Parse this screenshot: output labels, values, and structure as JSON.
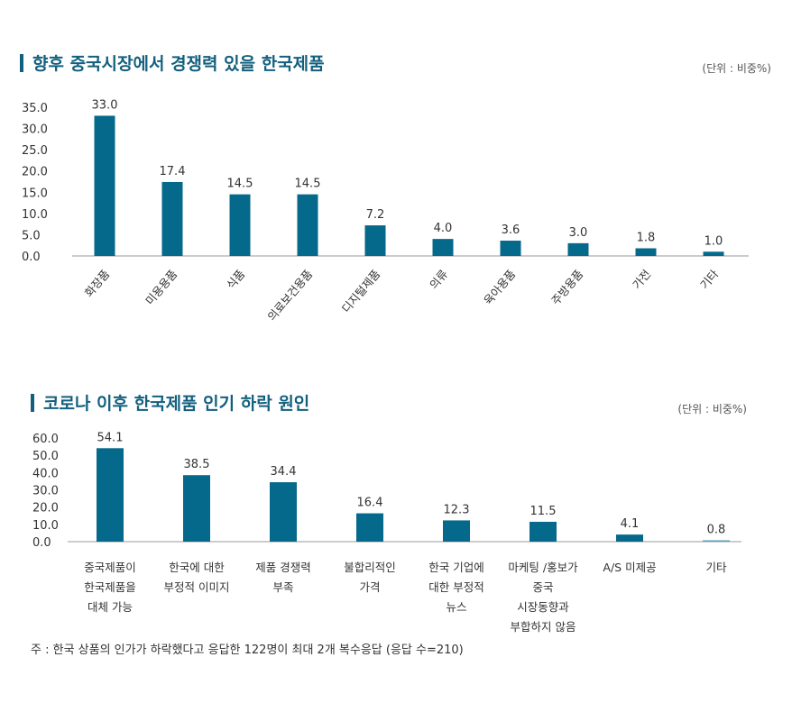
{
  "colors": {
    "bar": "#04698a",
    "bar_light": "#5aa3be",
    "title": "#13607e",
    "axis": "#cccccc"
  },
  "chart_data": [
    {
      "type": "bar",
      "title": "향후 중국시장에서 경쟁력 있을 한국제품",
      "unit": "(단위 : 비중%)",
      "categories": [
        "화장품",
        "미용용품",
        "식품",
        "의료보건용품",
        "디지털제품",
        "의류",
        "육아용품",
        "주방용품",
        "가전",
        "기타"
      ],
      "values": [
        33.0,
        17.4,
        14.5,
        14.5,
        7.2,
        4.0,
        3.6,
        3.0,
        1.8,
        1.0
      ],
      "yticks": [
        "0.0",
        "5.0",
        "10.0",
        "15.0",
        "20.0",
        "25.0",
        "30.0",
        "35.0"
      ],
      "ylim": [
        0,
        35
      ],
      "grid": false,
      "category_label_rotation": "diagonal"
    },
    {
      "type": "bar",
      "title": "코로나 이후 한국제품 인기 하락 원인",
      "unit": "(단위 : 비중%)",
      "categories": [
        [
          "중국제품이",
          "한국제품을",
          "대체 가능"
        ],
        [
          "한국에 대한",
          "부정적 이미지"
        ],
        [
          "제품 경쟁력",
          "부족"
        ],
        [
          "불합리적인",
          "가격"
        ],
        [
          "한국 기업에",
          "대한 부정적",
          "뉴스"
        ],
        [
          "마케팅 /홍보가",
          "중국",
          "시장동향과",
          "부합하지 않음"
        ],
        [
          "A/S 미제공"
        ],
        [
          "기타"
        ]
      ],
      "values": [
        54.1,
        38.5,
        34.4,
        16.4,
        12.3,
        11.5,
        4.1,
        0.8
      ],
      "yticks": [
        "0.0",
        "10.0",
        "20.0",
        "30.0",
        "40.0",
        "50.0",
        "60.0"
      ],
      "ylim": [
        0,
        60
      ],
      "grid": false
    }
  ],
  "footnote": "주 : 한국 상품의 인가가 하락했다고 응답한 122명이 최대 2개 복수응답 (응답 수=210)"
}
